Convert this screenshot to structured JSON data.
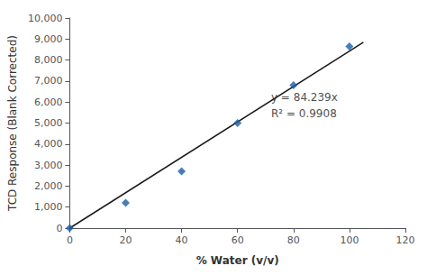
{
  "chart_data": {
    "type": "scatter",
    "xlabel": "% Water (v/v)",
    "ylabel": "TCD Response (Blank Corrected)",
    "xlim": [
      0,
      120
    ],
    "ylim": [
      0,
      10000
    ],
    "xticks": [
      0,
      20,
      40,
      60,
      80,
      100,
      120
    ],
    "yticks": [
      0,
      1000,
      2000,
      3000,
      4000,
      5000,
      6000,
      7000,
      8000,
      9000,
      10000
    ],
    "grid": false,
    "series": [
      {
        "type": "line",
        "x": [
          0,
          105
        ],
        "values": [
          0,
          8845.095
        ],
        "color": "#1a1a1a",
        "line_style": "solid"
      },
      {
        "type": "scatter",
        "x": [
          0,
          20,
          40,
          60,
          80,
          100
        ],
        "values": [
          0,
          1200,
          2700,
          5000,
          6800,
          8650
        ],
        "color": "#1A5EA8",
        "marker": "diamond"
      }
    ],
    "annotations": [
      {
        "text": "y = 84.239x\nR² = 0.9908",
        "x": 72,
        "y": 6600
      }
    ]
  }
}
